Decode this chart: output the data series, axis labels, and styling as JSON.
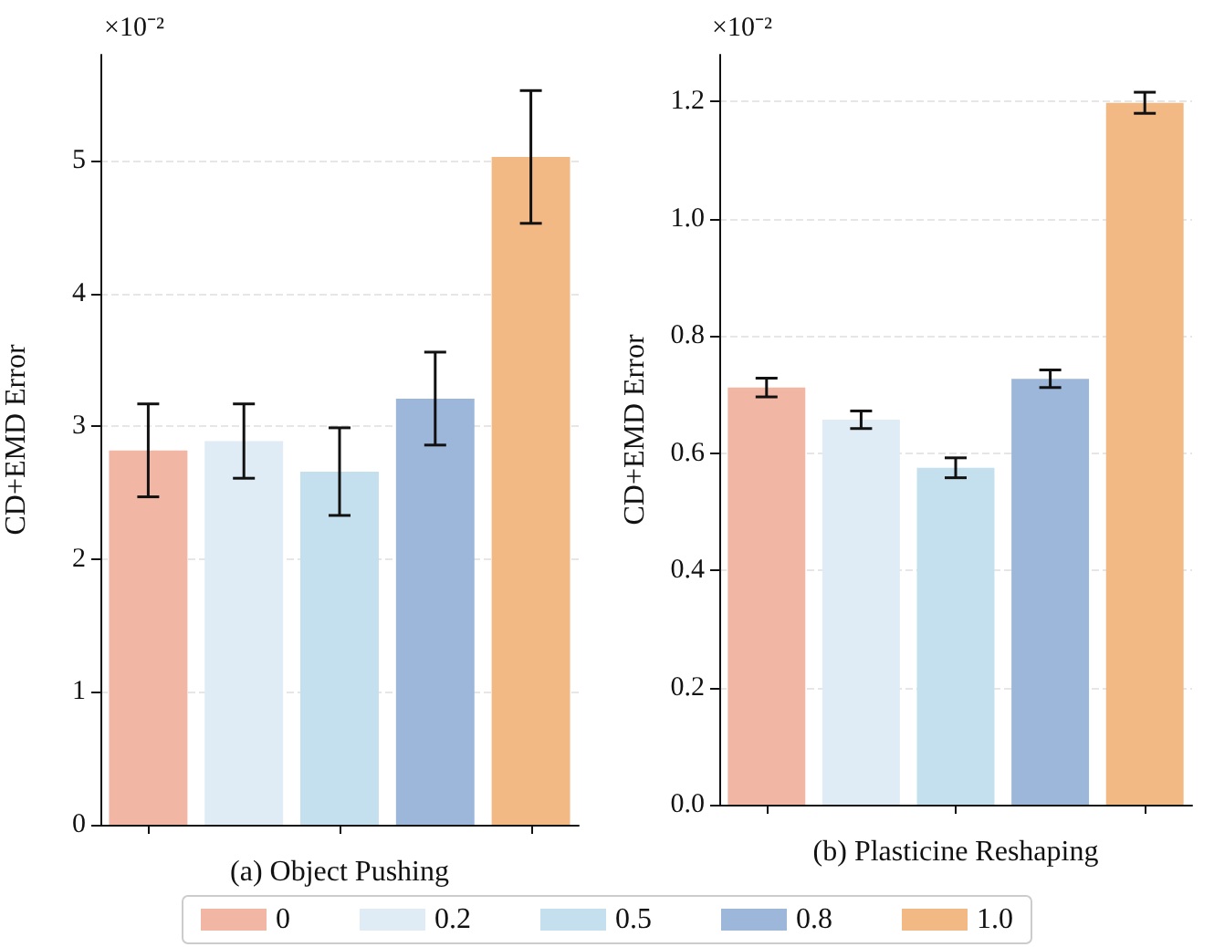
{
  "chart_data": [
    {
      "type": "bar",
      "xlabel": "(a) Object Pushing",
      "ylabel": "CD+EMD Error",
      "annotations": [
        "×10⁻²"
      ],
      "categories": [
        null,
        null,
        null,
        null,
        null
      ],
      "series": [
        {
          "name": "0",
          "color": "#f2b6a5",
          "values": [
            2.82,
            null,
            null,
            null,
            null
          ],
          "errors": [
            0.35,
            null,
            null,
            null,
            null
          ]
        },
        {
          "name": "0.2",
          "color": "#e0ecf5",
          "values": [
            null,
            2.89,
            null,
            null,
            null
          ],
          "errors": [
            null,
            0.28,
            null,
            null,
            null
          ]
        },
        {
          "name": "0.5",
          "color": "#c4dfed",
          "values": [
            null,
            null,
            2.66,
            null,
            null
          ],
          "errors": [
            null,
            null,
            0.33,
            null,
            null
          ]
        },
        {
          "name": "0.8",
          "color": "#9cb7d9",
          "values": [
            null,
            null,
            null,
            3.21,
            null
          ],
          "errors": [
            null,
            null,
            null,
            0.35,
            null
          ]
        },
        {
          "name": "1.0",
          "color": "#f3b985",
          "values": [
            null,
            null,
            null,
            null,
            5.03
          ],
          "errors": [
            null,
            null,
            null,
            null,
            0.5
          ]
        }
      ],
      "ylim": [
        0,
        5.8
      ],
      "yticks": [
        0,
        1,
        2,
        3,
        4,
        5
      ],
      "grid": "y",
      "legend": "bottom",
      "tick_labels": "y"
    },
    {
      "type": "bar",
      "xlabel": "(b) Plasticine Reshaping",
      "ylabel": "CD+EMD Error",
      "annotations": [
        "×10⁻²"
      ],
      "categories": [
        null,
        null,
        null,
        null,
        null
      ],
      "series": [
        {
          "name": "0",
          "color": "#f2b6a5",
          "values": [
            0.712,
            null,
            null,
            null,
            null
          ],
          "errors": [
            0.016,
            null,
            null,
            null,
            null
          ]
        },
        {
          "name": "0.2",
          "color": "#e0ecf5",
          "values": [
            null,
            0.657,
            null,
            null,
            null
          ],
          "errors": [
            null,
            0.015,
            null,
            null,
            null
          ]
        },
        {
          "name": "0.5",
          "color": "#c4dfed",
          "values": [
            null,
            null,
            0.575,
            null,
            null
          ],
          "errors": [
            null,
            null,
            0.017,
            null,
            null
          ]
        },
        {
          "name": "0.8",
          "color": "#9cb7d9",
          "values": [
            null,
            null,
            null,
            0.727,
            null
          ],
          "errors": [
            null,
            null,
            null,
            0.015,
            null
          ]
        },
        {
          "name": "1.0",
          "color": "#f3b985",
          "values": [
            null,
            null,
            null,
            null,
            1.198
          ],
          "errors": [
            null,
            null,
            null,
            null,
            0.018
          ]
        }
      ],
      "ylim": [
        0,
        1.28
      ],
      "yticks": [
        {
          "value": 0,
          "label": "0.0"
        },
        0.2,
        0.4,
        0.6,
        0.8,
        {
          "value": 1,
          "label": "1.0"
        },
        1.2
      ],
      "grid": "y",
      "tick_labels": "y"
    }
  ]
}
